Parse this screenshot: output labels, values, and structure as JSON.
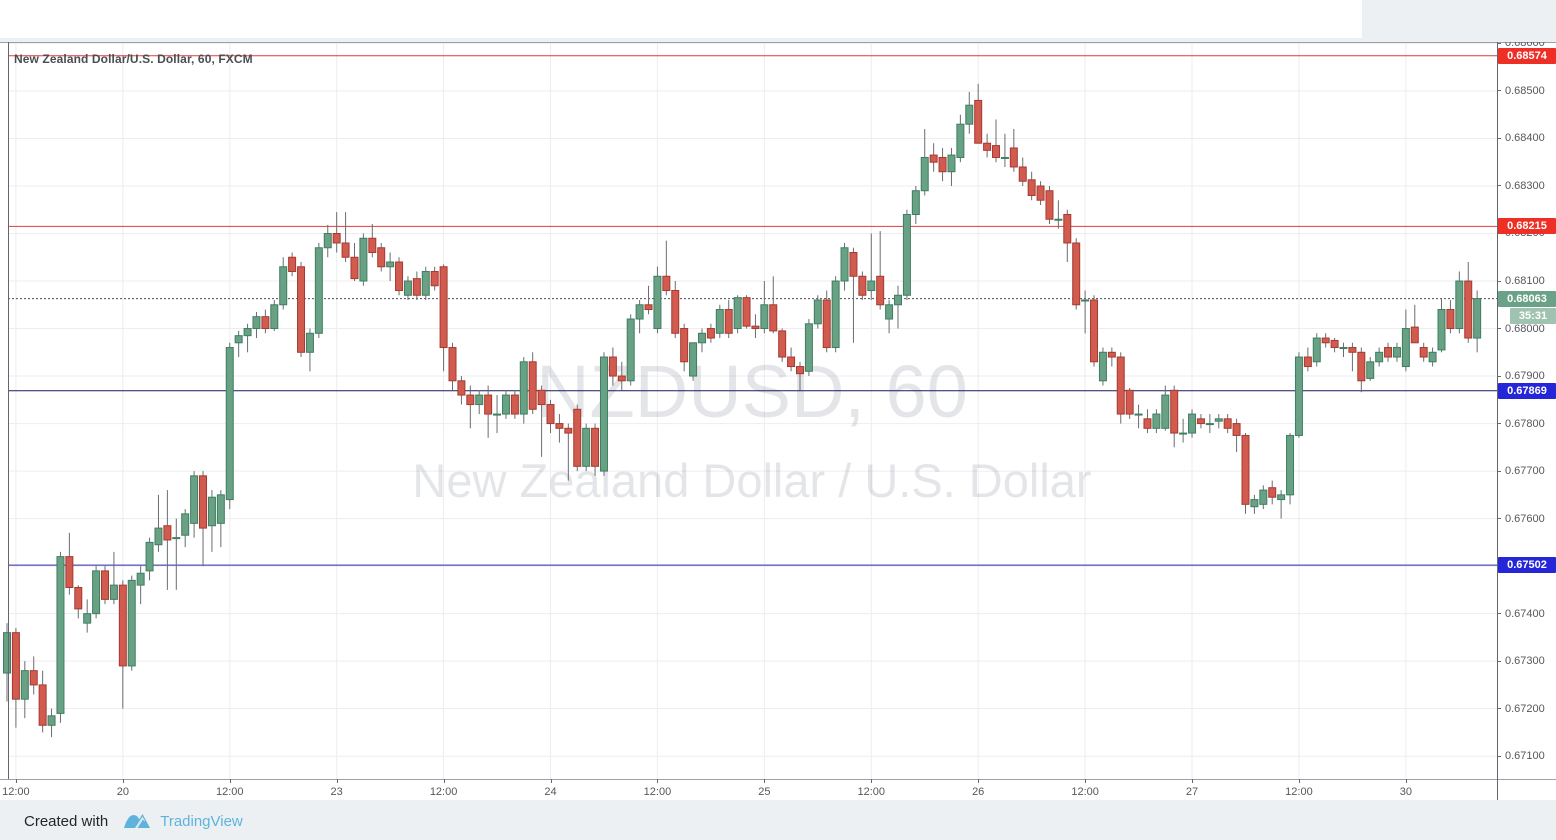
{
  "header": {
    "chart_title": "New Zealand Dollar/U.S. Dollar, 60, FXCM"
  },
  "watermark": {
    "line1": "NZDUSD, 60",
    "line2": "New Zealand Dollar / U.S. Dollar"
  },
  "footer": {
    "created_with": "Created with",
    "brand": "TradingView",
    "logo": "tradingview-mountain-logo"
  },
  "colors": {
    "up_fill": "#68a183",
    "up_border": "#3f7e63",
    "down_fill": "#d15b4e",
    "down_border": "#a63a31",
    "wick": "#6a6c6f",
    "grid": "#ededf0",
    "frame": "#9ca0a8",
    "axis_border": "#62656d",
    "axis_text": "#55575c",
    "watermark": "rgba(90,96,110,0.16)",
    "badge_red": "#ee2f26",
    "badge_last_price": "#6aa287",
    "badge_countdown": "#a0c2b1",
    "badge_blue": "#2626d9",
    "line_red": "#e23b3b",
    "line_dark_navy": "#1a1a5e",
    "line_blue": "#2929a8",
    "last_price_line": "#4a4e55",
    "brand_blue": "#5db3dc"
  },
  "price_axis": {
    "labels": [
      "0.68600",
      "0.68500",
      "0.68400",
      "0.68300",
      "0.68200",
      "0.68100",
      "0.68000",
      "0.67900",
      "0.67800",
      "0.67700",
      "0.67600",
      "0.67500",
      "0.67400",
      "0.67300",
      "0.67200",
      "0.67100"
    ]
  },
  "time_axis": {
    "labels": [
      {
        "index": 1,
        "label": "12:00"
      },
      {
        "index": 13,
        "label": "20"
      },
      {
        "index": 25,
        "label": "12:00"
      },
      {
        "index": 37,
        "label": "23"
      },
      {
        "index": 49,
        "label": "12:00"
      },
      {
        "index": 61,
        "label": "24"
      },
      {
        "index": 73,
        "label": "12:00"
      },
      {
        "index": 85,
        "label": "25"
      },
      {
        "index": 97,
        "label": "12:00"
      },
      {
        "index": 109,
        "label": "26"
      },
      {
        "index": 121,
        "label": "12:00"
      },
      {
        "index": 133,
        "label": "27"
      },
      {
        "index": 145,
        "label": "12:00"
      },
      {
        "index": 157,
        "label": "30"
      }
    ]
  },
  "chart_data": {
    "type": "candlestick",
    "title": "New Zealand Dollar/U.S. Dollar, 60, FXCM",
    "symbol": "NZDUSD",
    "interval": "60",
    "exchange": "FXCM",
    "last_price": 0.68063,
    "countdown": "35:31",
    "ylim": [
      0.67052,
      0.68603
    ],
    "grid": true,
    "levels": [
      {
        "price": 0.68574,
        "label": "0.68574",
        "style": "solid",
        "line_color": "#e23b3b",
        "badge_color": "#ee2f26"
      },
      {
        "price": 0.68215,
        "label": "0.68215",
        "style": "solid",
        "line_color": "#e23b3b",
        "badge_color": "#ee2f26"
      },
      {
        "price": 0.68063,
        "label": "0.68063",
        "style": "dotted",
        "line_color": "#4a4e55",
        "badge_color": "#6aa287",
        "is_last_price": true
      },
      {
        "price": 0.67869,
        "label": "0.67869",
        "style": "solid",
        "line_color": "#1a1a5e",
        "badge_color": "#2626d9"
      },
      {
        "price": 0.67502,
        "label": "0.67502",
        "style": "solid",
        "line_color": "#2929a8",
        "badge_color": "#2626d9"
      }
    ],
    "candles": [
      [
        0.67275,
        0.6738,
        0.67215,
        0.6736
      ],
      [
        0.6736,
        0.6737,
        0.6716,
        0.6722
      ],
      [
        0.6722,
        0.673,
        0.6718,
        0.6728
      ],
      [
        0.6728,
        0.6731,
        0.6723,
        0.6725
      ],
      [
        0.6725,
        0.6728,
        0.6715,
        0.67165
      ],
      [
        0.67165,
        0.672,
        0.6714,
        0.67185
      ],
      [
        0.6719,
        0.6753,
        0.6717,
        0.6752
      ],
      [
        0.6752,
        0.6757,
        0.6744,
        0.67455
      ],
      [
        0.67455,
        0.6746,
        0.6739,
        0.6741
      ],
      [
        0.6738,
        0.6743,
        0.6736,
        0.674
      ],
      [
        0.674,
        0.675,
        0.6739,
        0.6749
      ],
      [
        0.6749,
        0.675,
        0.6742,
        0.6743
      ],
      [
        0.6743,
        0.6753,
        0.6742,
        0.6746
      ],
      [
        0.6746,
        0.6747,
        0.672,
        0.6729
      ],
      [
        0.6729,
        0.6748,
        0.6728,
        0.6747
      ],
      [
        0.6746,
        0.675,
        0.6742,
        0.67485
      ],
      [
        0.6749,
        0.6756,
        0.6747,
        0.6755
      ],
      [
        0.67545,
        0.6765,
        0.6753,
        0.6758
      ],
      [
        0.67585,
        0.6766,
        0.6745,
        0.67555
      ],
      [
        0.6756,
        0.676,
        0.6745,
        0.6756
      ],
      [
        0.67565,
        0.6762,
        0.6754,
        0.6761
      ],
      [
        0.6759,
        0.677,
        0.6756,
        0.6769
      ],
      [
        0.6769,
        0.677,
        0.675,
        0.6758
      ],
      [
        0.67585,
        0.6766,
        0.6753,
        0.67645
      ],
      [
        0.6759,
        0.6766,
        0.6754,
        0.6765
      ],
      [
        0.6764,
        0.6797,
        0.6762,
        0.6796
      ],
      [
        0.6797,
        0.67995,
        0.6794,
        0.67985
      ],
      [
        0.67985,
        0.6801,
        0.6795,
        0.68
      ],
      [
        0.68,
        0.68035,
        0.6798,
        0.68025
      ],
      [
        0.68025,
        0.6804,
        0.6799,
        0.68
      ],
      [
        0.68,
        0.6806,
        0.67995,
        0.6805
      ],
      [
        0.6805,
        0.6815,
        0.6804,
        0.6813
      ],
      [
        0.6815,
        0.6816,
        0.6811,
        0.6812
      ],
      [
        0.6813,
        0.6814,
        0.6794,
        0.6795
      ],
      [
        0.6795,
        0.68,
        0.6791,
        0.6799
      ],
      [
        0.6799,
        0.6818,
        0.6798,
        0.6817
      ],
      [
        0.6817,
        0.68218,
        0.6815,
        0.682
      ],
      [
        0.682,
        0.68245,
        0.6816,
        0.6818
      ],
      [
        0.6818,
        0.68245,
        0.6814,
        0.6815
      ],
      [
        0.6815,
        0.6818,
        0.681,
        0.68105
      ],
      [
        0.681,
        0.682,
        0.6809,
        0.6819
      ],
      [
        0.6819,
        0.6822,
        0.6815,
        0.6816
      ],
      [
        0.6817,
        0.6818,
        0.6812,
        0.6813
      ],
      [
        0.6813,
        0.6816,
        0.681,
        0.6814
      ],
      [
        0.6814,
        0.6815,
        0.6807,
        0.6808
      ],
      [
        0.6807,
        0.6811,
        0.6806,
        0.681
      ],
      [
        0.68105,
        0.6812,
        0.6806,
        0.6807
      ],
      [
        0.6807,
        0.6813,
        0.6806,
        0.6812
      ],
      [
        0.6812,
        0.6813,
        0.6808,
        0.6809
      ],
      [
        0.6813,
        0.68135,
        0.6791,
        0.6796
      ],
      [
        0.6796,
        0.6797,
        0.6787,
        0.6789
      ],
      [
        0.6789,
        0.679,
        0.6784,
        0.6786
      ],
      [
        0.6786,
        0.6788,
        0.6779,
        0.6784
      ],
      [
        0.6784,
        0.6787,
        0.6782,
        0.6786
      ],
      [
        0.6786,
        0.6788,
        0.6777,
        0.6782
      ],
      [
        0.6782,
        0.6786,
        0.6778,
        0.6782
      ],
      [
        0.6782,
        0.6787,
        0.6781,
        0.6786
      ],
      [
        0.6786,
        0.6787,
        0.6781,
        0.6782
      ],
      [
        0.6782,
        0.6794,
        0.678,
        0.6793
      ],
      [
        0.6793,
        0.6795,
        0.6782,
        0.6783
      ],
      [
        0.6787,
        0.6788,
        0.6773,
        0.6784
      ],
      [
        0.6784,
        0.6785,
        0.6778,
        0.678
      ],
      [
        0.678,
        0.6782,
        0.6776,
        0.6779
      ],
      [
        0.6779,
        0.678,
        0.6768,
        0.6778
      ],
      [
        0.6783,
        0.6784,
        0.677,
        0.6771
      ],
      [
        0.6771,
        0.678,
        0.677,
        0.6779
      ],
      [
        0.6779,
        0.678,
        0.6769,
        0.6771
      ],
      [
        0.677,
        0.6795,
        0.6769,
        0.6794
      ],
      [
        0.6794,
        0.6796,
        0.6788,
        0.679
      ],
      [
        0.679,
        0.6793,
        0.6787,
        0.6789
      ],
      [
        0.6789,
        0.6803,
        0.6788,
        0.6802
      ],
      [
        0.6802,
        0.6806,
        0.6799,
        0.6805
      ],
      [
        0.6805,
        0.6809,
        0.6803,
        0.6804
      ],
      [
        0.68,
        0.6813,
        0.6799,
        0.6811
      ],
      [
        0.6811,
        0.68185,
        0.6807,
        0.6808
      ],
      [
        0.6808,
        0.681,
        0.6798,
        0.6799
      ],
      [
        0.68,
        0.6801,
        0.6791,
        0.6793
      ],
      [
        0.679,
        0.6797,
        0.6789,
        0.6797
      ],
      [
        0.6797,
        0.68,
        0.6795,
        0.6799
      ],
      [
        0.68,
        0.6801,
        0.6797,
        0.6798
      ],
      [
        0.6799,
        0.6805,
        0.6798,
        0.6804
      ],
      [
        0.6804,
        0.6806,
        0.6798,
        0.6799
      ],
      [
        0.68,
        0.6807,
        0.6799,
        0.68065
      ],
      [
        0.68065,
        0.6807,
        0.68,
        0.68005
      ],
      [
        0.68005,
        0.6803,
        0.6798,
        0.68
      ],
      [
        0.68,
        0.681,
        0.6799,
        0.6805
      ],
      [
        0.6805,
        0.6811,
        0.6799,
        0.67995
      ],
      [
        0.67995,
        0.68,
        0.6793,
        0.6794
      ],
      [
        0.6794,
        0.6796,
        0.6791,
        0.6792
      ],
      [
        0.6792,
        0.6793,
        0.6787,
        0.67905
      ],
      [
        0.6791,
        0.6802,
        0.679,
        0.6801
      ],
      [
        0.6801,
        0.6807,
        0.68,
        0.6806
      ],
      [
        0.6806,
        0.6808,
        0.6795,
        0.6796
      ],
      [
        0.6796,
        0.6811,
        0.6795,
        0.681
      ],
      [
        0.681,
        0.6818,
        0.6808,
        0.6817
      ],
      [
        0.6816,
        0.6817,
        0.6797,
        0.6811
      ],
      [
        0.6811,
        0.6812,
        0.6806,
        0.6807
      ],
      [
        0.6808,
        0.682,
        0.6806,
        0.681
      ],
      [
        0.6811,
        0.68205,
        0.6804,
        0.6805
      ],
      [
        0.6802,
        0.6806,
        0.6799,
        0.6805
      ],
      [
        0.6805,
        0.6809,
        0.68,
        0.6807
      ],
      [
        0.6807,
        0.6825,
        0.6806,
        0.6824
      ],
      [
        0.6824,
        0.683,
        0.6822,
        0.6829
      ],
      [
        0.6829,
        0.6842,
        0.6828,
        0.6836
      ],
      [
        0.68365,
        0.6839,
        0.6833,
        0.6835
      ],
      [
        0.6836,
        0.6838,
        0.6831,
        0.6833
      ],
      [
        0.6833,
        0.6838,
        0.683,
        0.68365
      ],
      [
        0.6836,
        0.6845,
        0.6835,
        0.6843
      ],
      [
        0.6843,
        0.68498,
        0.6841,
        0.6847
      ],
      [
        0.6848,
        0.68515,
        0.6839,
        0.6839
      ],
      [
        0.6839,
        0.6841,
        0.6836,
        0.68375
      ],
      [
        0.68385,
        0.6844,
        0.6835,
        0.6836
      ],
      [
        0.6836,
        0.6841,
        0.6834,
        0.6836
      ],
      [
        0.6838,
        0.6842,
        0.6833,
        0.6834
      ],
      [
        0.6834,
        0.6836,
        0.683,
        0.6831
      ],
      [
        0.68313,
        0.6833,
        0.6827,
        0.6828
      ],
      [
        0.683,
        0.6831,
        0.6826,
        0.6827
      ],
      [
        0.6829,
        0.683,
        0.6822,
        0.6823
      ],
      [
        0.6823,
        0.6827,
        0.6821,
        0.6823
      ],
      [
        0.6824,
        0.6825,
        0.6814,
        0.6818
      ],
      [
        0.6818,
        0.6819,
        0.6804,
        0.6805
      ],
      [
        0.6806,
        0.6808,
        0.6799,
        0.6806
      ],
      [
        0.6806,
        0.6807,
        0.6792,
        0.6793
      ],
      [
        0.6789,
        0.6796,
        0.6788,
        0.6795
      ],
      [
        0.6795,
        0.6796,
        0.6792,
        0.6794
      ],
      [
        0.6794,
        0.6795,
        0.678,
        0.6782
      ],
      [
        0.6787,
        0.67875,
        0.6781,
        0.6782
      ],
      [
        0.6782,
        0.6784,
        0.6779,
        0.6782
      ],
      [
        0.6781,
        0.6783,
        0.6778,
        0.6779
      ],
      [
        0.6779,
        0.6783,
        0.6778,
        0.6782
      ],
      [
        0.6779,
        0.6788,
        0.67785,
        0.6786
      ],
      [
        0.6787,
        0.6788,
        0.6775,
        0.6778
      ],
      [
        0.6778,
        0.6781,
        0.6776,
        0.6778
      ],
      [
        0.6778,
        0.6783,
        0.6777,
        0.6782
      ],
      [
        0.6781,
        0.6782,
        0.6779,
        0.678
      ],
      [
        0.678,
        0.6782,
        0.6778,
        0.678
      ],
      [
        0.67805,
        0.6782,
        0.6779,
        0.6781
      ],
      [
        0.6781,
        0.6782,
        0.6778,
        0.6779
      ],
      [
        0.678,
        0.6781,
        0.6774,
        0.67775
      ],
      [
        0.67775,
        0.6778,
        0.6761,
        0.6763
      ],
      [
        0.67625,
        0.6765,
        0.6761,
        0.6764
      ],
      [
        0.6763,
        0.6767,
        0.6762,
        0.6766
      ],
      [
        0.67665,
        0.6768,
        0.6763,
        0.67645
      ],
      [
        0.6764,
        0.6766,
        0.676,
        0.6765
      ],
      [
        0.6765,
        0.6778,
        0.6763,
        0.67775
      ],
      [
        0.67775,
        0.6795,
        0.6777,
        0.6794
      ],
      [
        0.6794,
        0.6796,
        0.6791,
        0.6792
      ],
      [
        0.6793,
        0.6799,
        0.6792,
        0.6798
      ],
      [
        0.6798,
        0.6799,
        0.6796,
        0.6797
      ],
      [
        0.67975,
        0.6798,
        0.6795,
        0.6796
      ],
      [
        0.6796,
        0.6797,
        0.6794,
        0.6796
      ],
      [
        0.6796,
        0.6797,
        0.6791,
        0.6795
      ],
      [
        0.6795,
        0.6796,
        0.67866,
        0.6789
      ],
      [
        0.67895,
        0.6794,
        0.6789,
        0.6793
      ],
      [
        0.6793,
        0.6796,
        0.6792,
        0.6795
      ],
      [
        0.6796,
        0.6797,
        0.6793,
        0.6794
      ],
      [
        0.6794,
        0.6797,
        0.6793,
        0.6796
      ],
      [
        0.6792,
        0.6804,
        0.6791,
        0.68
      ],
      [
        0.68003,
        0.6805,
        0.6797,
        0.6797
      ],
      [
        0.6796,
        0.6797,
        0.6793,
        0.6794
      ],
      [
        0.6793,
        0.6796,
        0.6792,
        0.6795
      ],
      [
        0.67955,
        0.68063,
        0.6795,
        0.6804
      ],
      [
        0.6804,
        0.6806,
        0.6799,
        0.68
      ],
      [
        0.68,
        0.6812,
        0.6799,
        0.681
      ],
      [
        0.681,
        0.6814,
        0.6797,
        0.6798
      ],
      [
        0.6798,
        0.6808,
        0.6795,
        0.68063
      ]
    ]
  }
}
